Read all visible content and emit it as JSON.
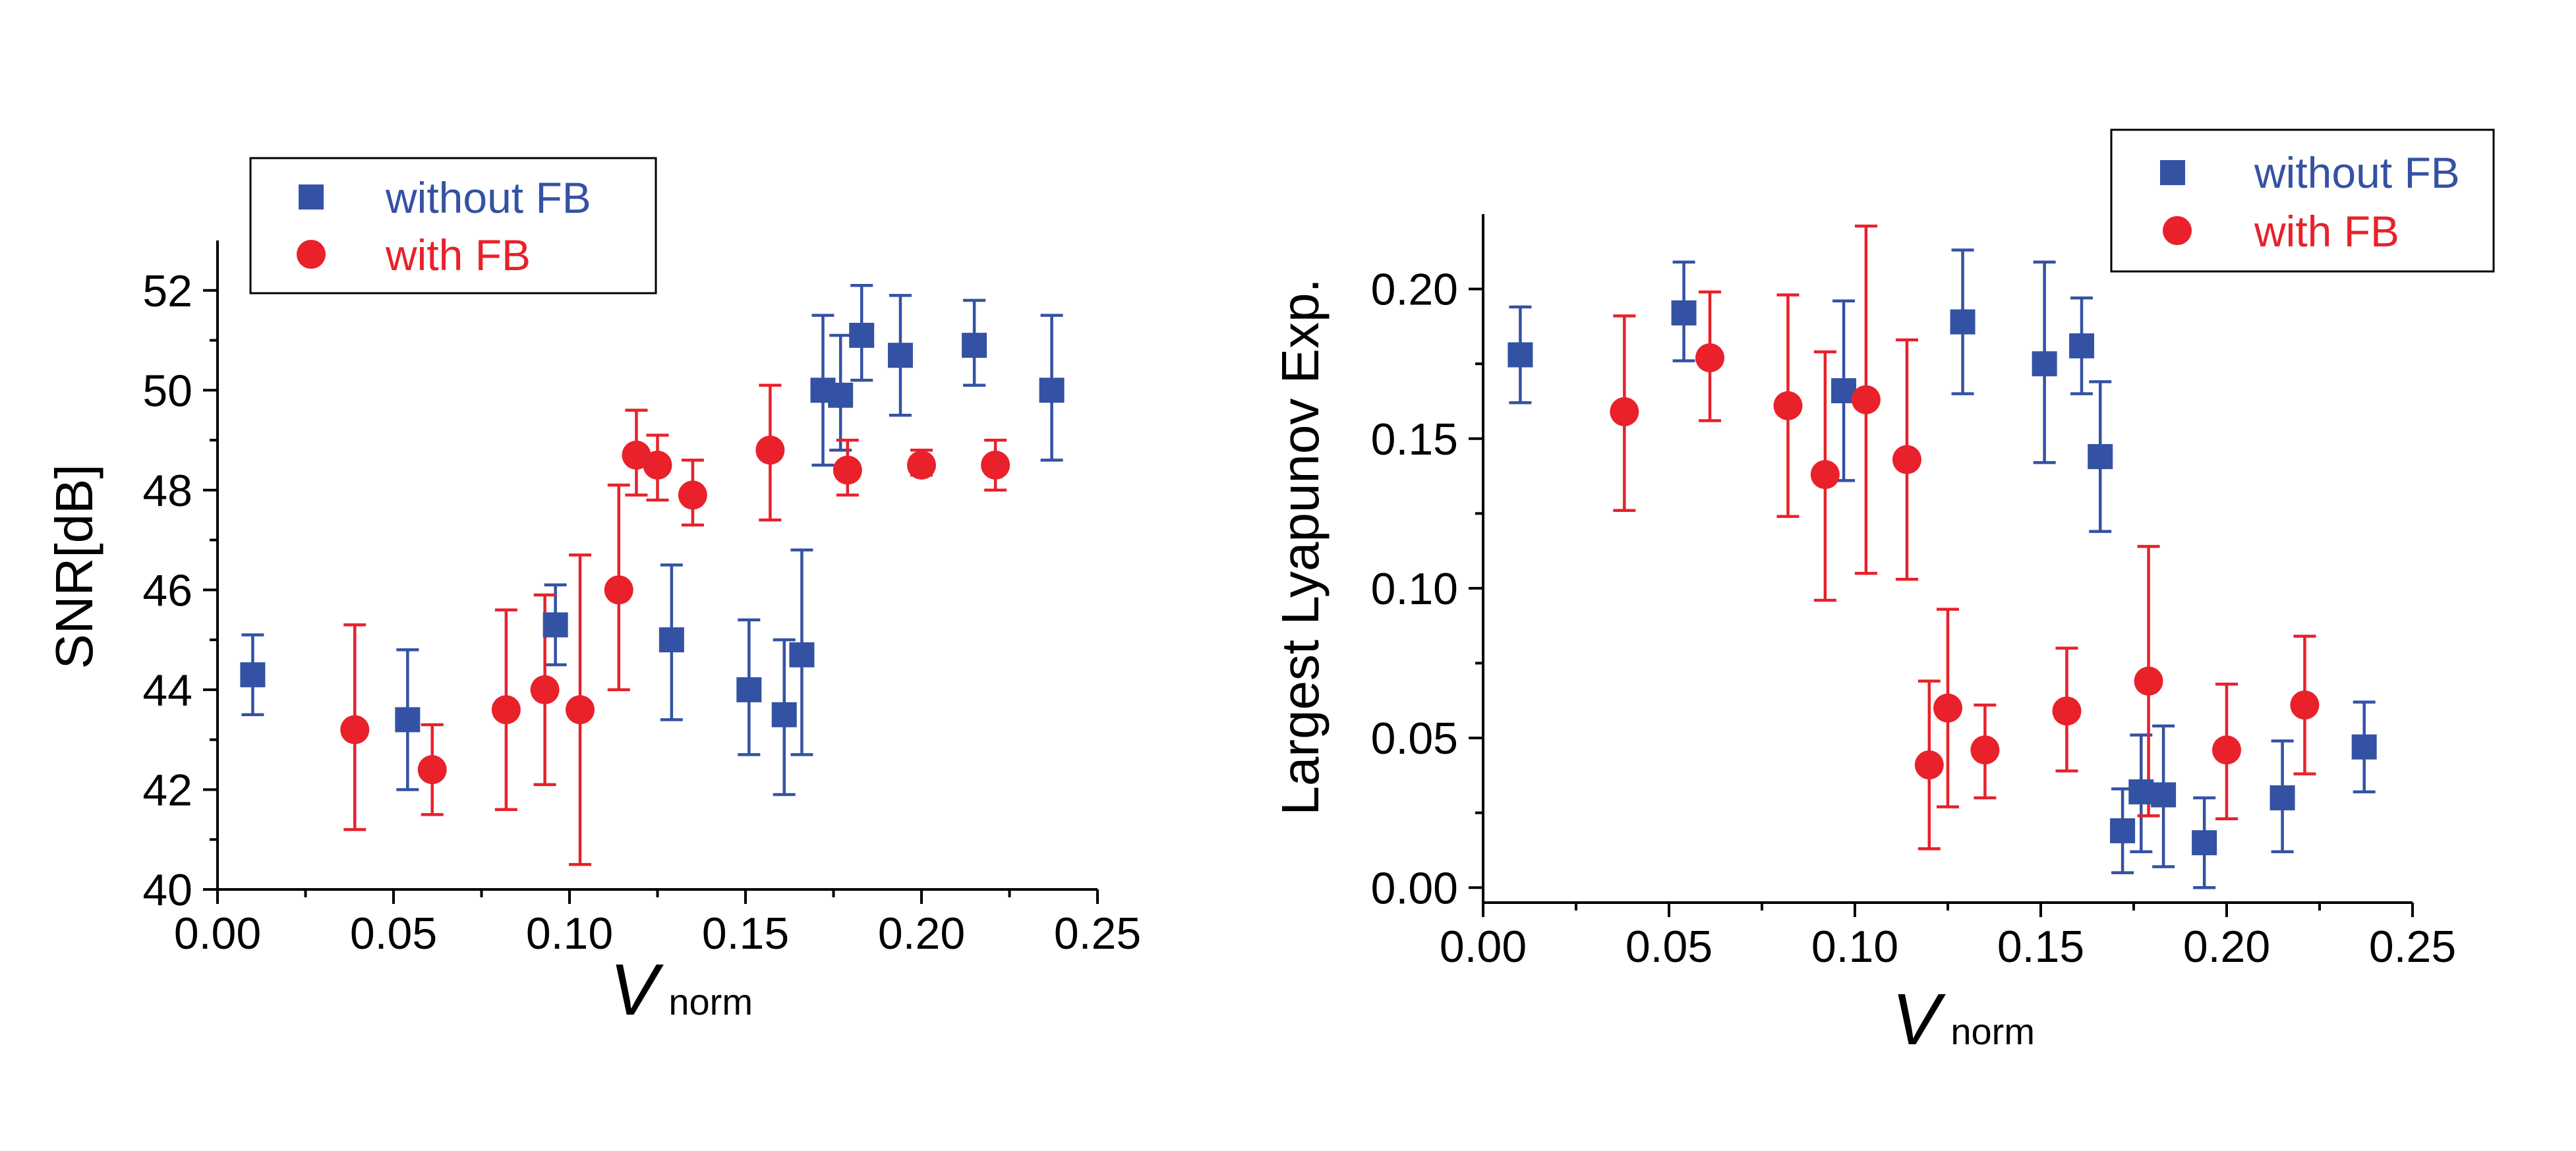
{
  "colors": {
    "without_fb": "#3452a4",
    "with_fb": "#e8212a"
  },
  "chart_data": [
    {
      "type": "scatter",
      "xlabel": "V",
      "xlabel_sub": "norm",
      "ylabel": "SNR[dB]",
      "xlim": [
        0.0,
        0.25
      ],
      "ylim": [
        40,
        53
      ],
      "x_ticks": [
        "0.00",
        "0.05",
        "0.10",
        "0.15",
        "0.20",
        "0.25"
      ],
      "x_tick_values": [
        0.0,
        0.05,
        0.1,
        0.15,
        0.2,
        0.25
      ],
      "y_ticks": [
        "40",
        "42",
        "44",
        "46",
        "48",
        "50",
        "52"
      ],
      "y_tick_values": [
        40,
        42,
        44,
        46,
        48,
        50,
        52
      ],
      "legend_position": "top-left",
      "series": [
        {
          "name": "without FB",
          "marker": "square",
          "points": [
            {
              "x": 0.01,
              "y": 44.3,
              "lo": 43.5,
              "hi": 45.1
            },
            {
              "x": 0.054,
              "y": 43.4,
              "lo": 42.0,
              "hi": 44.8
            },
            {
              "x": 0.096,
              "y": 45.3,
              "lo": 44.5,
              "hi": 46.1
            },
            {
              "x": 0.129,
              "y": 45.0,
              "lo": 43.4,
              "hi": 46.5
            },
            {
              "x": 0.151,
              "y": 44.0,
              "lo": 42.7,
              "hi": 45.4
            },
            {
              "x": 0.161,
              "y": 43.5,
              "lo": 41.9,
              "hi": 45.0
            },
            {
              "x": 0.166,
              "y": 44.7,
              "lo": 42.7,
              "hi": 46.8
            },
            {
              "x": 0.172,
              "y": 50.0,
              "lo": 48.5,
              "hi": 51.5
            },
            {
              "x": 0.177,
              "y": 49.9,
              "lo": 48.8,
              "hi": 51.1
            },
            {
              "x": 0.183,
              "y": 51.1,
              "lo": 50.2,
              "hi": 52.1
            },
            {
              "x": 0.194,
              "y": 50.7,
              "lo": 49.5,
              "hi": 51.9
            },
            {
              "x": 0.215,
              "y": 50.9,
              "lo": 50.1,
              "hi": 51.8
            },
            {
              "x": 0.237,
              "y": 50.0,
              "lo": 48.6,
              "hi": 51.5
            }
          ]
        },
        {
          "name": "with FB",
          "marker": "circle",
          "points": [
            {
              "x": 0.039,
              "y": 43.2,
              "lo": 41.2,
              "hi": 45.3
            },
            {
              "x": 0.061,
              "y": 42.4,
              "lo": 41.5,
              "hi": 43.3
            },
            {
              "x": 0.082,
              "y": 43.6,
              "lo": 41.6,
              "hi": 45.6
            },
            {
              "x": 0.093,
              "y": 44.0,
              "lo": 42.1,
              "hi": 45.9
            },
            {
              "x": 0.103,
              "y": 43.6,
              "lo": 40.5,
              "hi": 46.7
            },
            {
              "x": 0.114,
              "y": 46.0,
              "lo": 44.0,
              "hi": 48.1
            },
            {
              "x": 0.119,
              "y": 48.7,
              "lo": 47.9,
              "hi": 49.6
            },
            {
              "x": 0.125,
              "y": 48.5,
              "lo": 47.8,
              "hi": 49.1
            },
            {
              "x": 0.135,
              "y": 47.9,
              "lo": 47.3,
              "hi": 48.6
            },
            {
              "x": 0.157,
              "y": 48.8,
              "lo": 47.4,
              "hi": 50.1
            },
            {
              "x": 0.179,
              "y": 48.4,
              "lo": 47.9,
              "hi": 49.0
            },
            {
              "x": 0.2,
              "y": 48.5,
              "lo": 48.3,
              "hi": 48.8
            },
            {
              "x": 0.221,
              "y": 48.5,
              "lo": 48.0,
              "hi": 49.0
            }
          ]
        }
      ]
    },
    {
      "type": "scatter",
      "xlabel": "V",
      "xlabel_sub": "norm",
      "ylabel": "Largest Lyapunov Exp.",
      "xlim": [
        0.0,
        0.25
      ],
      "ylim": [
        -0.005,
        0.225
      ],
      "x_ticks": [
        "0.00",
        "0.05",
        "0.10",
        "0.15",
        "0.20",
        "0.25"
      ],
      "x_tick_values": [
        0.0,
        0.05,
        0.1,
        0.15,
        0.2,
        0.25
      ],
      "y_ticks": [
        "0.00",
        "0.05",
        "0.10",
        "0.15",
        "0.20"
      ],
      "y_tick_values": [
        0.0,
        0.05,
        0.1,
        0.15,
        0.2
      ],
      "legend_position": "top-right",
      "series": [
        {
          "name": "without FB",
          "marker": "square",
          "points": [
            {
              "x": 0.01,
              "y": 0.178,
              "lo": 0.162,
              "hi": 0.194
            },
            {
              "x": 0.054,
              "y": 0.192,
              "lo": 0.176,
              "hi": 0.209
            },
            {
              "x": 0.097,
              "y": 0.166,
              "lo": 0.136,
              "hi": 0.196
            },
            {
              "x": 0.129,
              "y": 0.189,
              "lo": 0.165,
              "hi": 0.213
            },
            {
              "x": 0.151,
              "y": 0.175,
              "lo": 0.142,
              "hi": 0.209
            },
            {
              "x": 0.161,
              "y": 0.181,
              "lo": 0.165,
              "hi": 0.197
            },
            {
              "x": 0.166,
              "y": 0.144,
              "lo": 0.119,
              "hi": 0.169
            },
            {
              "x": 0.172,
              "y": 0.019,
              "lo": 0.005,
              "hi": 0.033
            },
            {
              "x": 0.177,
              "y": 0.032,
              "lo": 0.012,
              "hi": 0.051
            },
            {
              "x": 0.183,
              "y": 0.031,
              "lo": 0.007,
              "hi": 0.054
            },
            {
              "x": 0.194,
              "y": 0.015,
              "lo": 0.0,
              "hi": 0.03
            },
            {
              "x": 0.215,
              "y": 0.03,
              "lo": 0.012,
              "hi": 0.049
            },
            {
              "x": 0.237,
              "y": 0.047,
              "lo": 0.032,
              "hi": 0.062
            }
          ]
        },
        {
          "name": "with FB",
          "marker": "circle",
          "points": [
            {
              "x": 0.038,
              "y": 0.159,
              "lo": 0.126,
              "hi": 0.191
            },
            {
              "x": 0.061,
              "y": 0.177,
              "lo": 0.156,
              "hi": 0.199
            },
            {
              "x": 0.082,
              "y": 0.161,
              "lo": 0.124,
              "hi": 0.198
            },
            {
              "x": 0.092,
              "y": 0.138,
              "lo": 0.096,
              "hi": 0.179
            },
            {
              "x": 0.103,
              "y": 0.163,
              "lo": 0.105,
              "hi": 0.221
            },
            {
              "x": 0.114,
              "y": 0.143,
              "lo": 0.103,
              "hi": 0.183
            },
            {
              "x": 0.12,
              "y": 0.041,
              "lo": 0.013,
              "hi": 0.069
            },
            {
              "x": 0.125,
              "y": 0.06,
              "lo": 0.027,
              "hi": 0.093
            },
            {
              "x": 0.135,
              "y": 0.046,
              "lo": 0.03,
              "hi": 0.061
            },
            {
              "x": 0.157,
              "y": 0.059,
              "lo": 0.039,
              "hi": 0.08
            },
            {
              "x": 0.179,
              "y": 0.069,
              "lo": 0.024,
              "hi": 0.114
            },
            {
              "x": 0.2,
              "y": 0.046,
              "lo": 0.023,
              "hi": 0.068
            },
            {
              "x": 0.221,
              "y": 0.061,
              "lo": 0.038,
              "hi": 0.084
            }
          ]
        }
      ]
    }
  ]
}
